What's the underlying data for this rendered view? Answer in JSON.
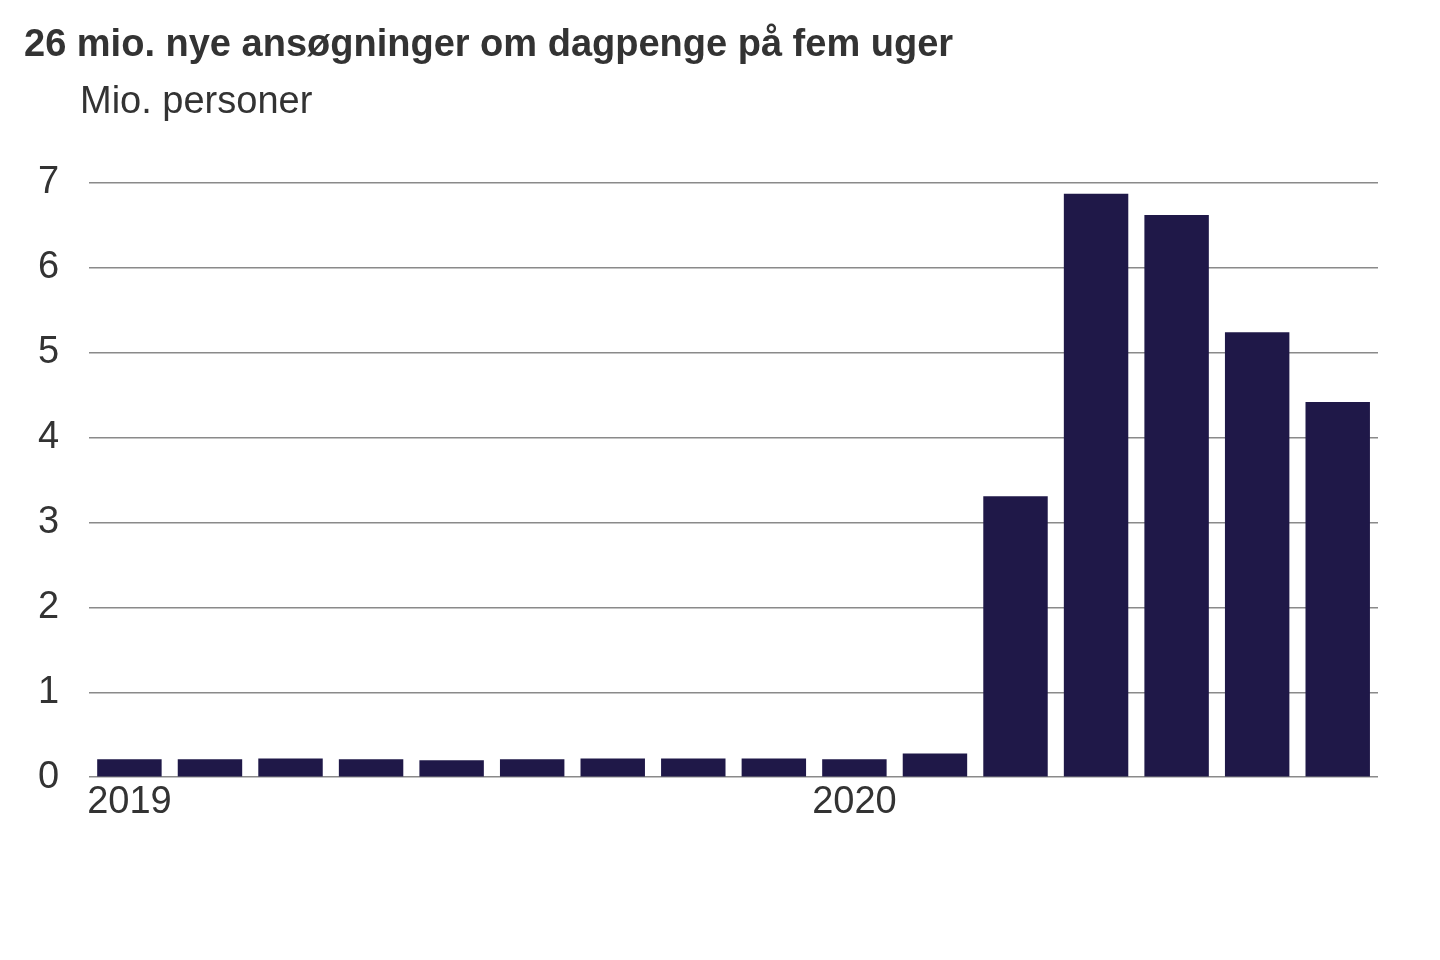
{
  "chart_data": {
    "type": "bar",
    "title": "26 mio. nye ansøgninger om dagpenge på fem uger",
    "ylabel": "Mio. personer",
    "categories": [
      "2019",
      null,
      null,
      null,
      null,
      null,
      null,
      null,
      null,
      "2020",
      null,
      null,
      null,
      null,
      null,
      null
    ],
    "values": [
      0.21,
      0.21,
      0.22,
      0.21,
      0.2,
      0.21,
      0.22,
      0.22,
      0.22,
      0.21,
      0.28,
      3.31,
      6.87,
      6.62,
      5.24,
      4.42
    ],
    "color": "#1f1848",
    "ylim": [
      0,
      7
    ],
    "yticks": [
      0,
      1,
      2,
      3,
      4,
      5,
      6,
      7
    ],
    "grid": "y"
  }
}
